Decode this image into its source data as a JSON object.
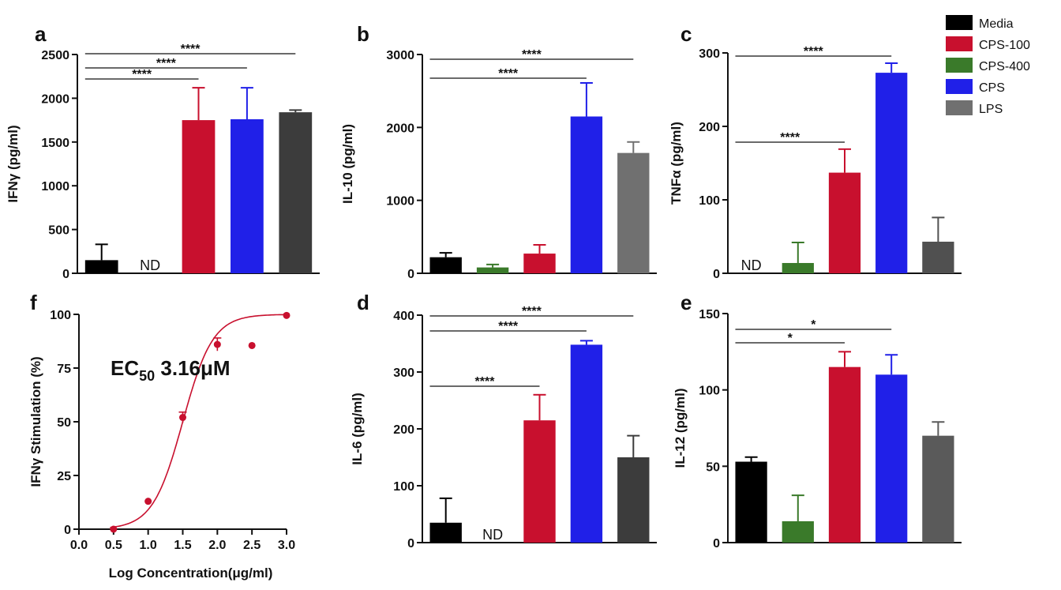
{
  "legend": [
    {
      "name": "Media",
      "color": "#000000"
    },
    {
      "name": "CPS-100",
      "color": "#c8102e"
    },
    {
      "name": "CPS-400",
      "color": "#3a7a2a"
    },
    {
      "name": "CPS",
      "color": "#2020e8"
    },
    {
      "name": "LPS",
      "color": "#707070"
    }
  ],
  "chart_data": [
    {
      "panel": "a",
      "type": "bar",
      "ylabel": "IFNγ (pg/ml)",
      "ylim": [
        0,
        2500
      ],
      "yticks": [
        0,
        500,
        1000,
        1500,
        2000,
        2500
      ],
      "categories": [
        "Media",
        "CPS-400",
        "CPS-100",
        "CPS",
        "LPS"
      ],
      "values": [
        150,
        null,
        1750,
        1760,
        1840
      ],
      "errors": [
        180,
        null,
        370,
        360,
        25
      ],
      "colors": [
        "#000000",
        "#3a7a2a",
        "#c8102e",
        "#2020e8",
        "#3c3c3c"
      ],
      "nd": [
        "",
        "ND",
        "",
        "",
        ""
      ],
      "sig": [
        {
          "from": 0,
          "to": 2,
          "label": "****"
        },
        {
          "from": 0,
          "to": 3,
          "label": "****"
        },
        {
          "from": 0,
          "to": 4,
          "label": "****"
        }
      ]
    },
    {
      "panel": "b",
      "type": "bar",
      "ylabel": "IL-10 (pg/ml)",
      "ylim": [
        0,
        3000
      ],
      "yticks": [
        0,
        1000,
        2000,
        3000
      ],
      "categories": [
        "Media",
        "CPS-400",
        "CPS-100",
        "CPS",
        "LPS"
      ],
      "values": [
        220,
        80,
        270,
        2150,
        1650
      ],
      "errors": [
        60,
        40,
        120,
        460,
        150
      ],
      "colors": [
        "#000000",
        "#3a7a2a",
        "#c8102e",
        "#2020e8",
        "#707070"
      ],
      "nd": [
        "",
        "",
        "",
        "",
        ""
      ],
      "sig": [
        {
          "from": 0,
          "to": 3,
          "label": "****"
        },
        {
          "from": 0,
          "to": 4,
          "label": "****"
        }
      ]
    },
    {
      "panel": "c",
      "type": "bar",
      "ylabel": "TNFα (pg/ml)",
      "ylim": [
        0,
        300
      ],
      "yticks": [
        0,
        100,
        200,
        300
      ],
      "categories": [
        "Media",
        "CPS-400",
        "CPS-100",
        "CPS",
        "LPS"
      ],
      "values": [
        null,
        14,
        137,
        273,
        43
      ],
      "errors": [
        null,
        28,
        32,
        13,
        33
      ],
      "colors": [
        "#000000",
        "#3a7a2a",
        "#c8102e",
        "#2020e8",
        "#505050"
      ],
      "nd": [
        "ND",
        "",
        "",
        "",
        ""
      ],
      "sig": [
        {
          "from": 0,
          "to": 2,
          "label": "****"
        },
        {
          "from": 0,
          "to": 3,
          "label": "****"
        }
      ]
    },
    {
      "panel": "f",
      "type": "scatter",
      "ylabel": "IFNγ Stimulation (%)",
      "xlabel": "Log Concentration(μg/ml)",
      "xlim": [
        0,
        3.0
      ],
      "ylim": [
        0,
        100
      ],
      "xticks": [
        "0.0",
        "0.5",
        "1.0",
        "1.5",
        "2.0",
        "2.5",
        "3.0"
      ],
      "yticks": [
        0,
        25,
        50,
        75,
        100
      ],
      "x": [
        0.5,
        1.0,
        1.5,
        2.0,
        2.5,
        3.0
      ],
      "y": [
        0,
        13,
        52,
        86,
        85.5,
        99.5
      ],
      "errors": [
        0,
        0,
        2.5,
        3,
        0,
        0
      ],
      "fit": {
        "bottom": 0,
        "top": 100,
        "logEC50": 1.5,
        "hill": 2.0
      },
      "annotation": {
        "main": "EC",
        "sub": "50",
        "value": " 3.16μM"
      },
      "color": "#c8102e"
    },
    {
      "panel": "d",
      "type": "bar",
      "ylabel": "IL-6 (pg/ml)",
      "ylim": [
        0,
        400
      ],
      "yticks": [
        0,
        100,
        200,
        300,
        400
      ],
      "categories": [
        "Media",
        "CPS-400",
        "CPS-100",
        "CPS",
        "LPS"
      ],
      "values": [
        35,
        null,
        215,
        348,
        150
      ],
      "errors": [
        43,
        null,
        45,
        7,
        38
      ],
      "colors": [
        "#000000",
        "#3a7a2a",
        "#c8102e",
        "#2020e8",
        "#3c3c3c"
      ],
      "nd": [
        "",
        "ND",
        "",
        "",
        ""
      ],
      "sig": [
        {
          "from": 0,
          "to": 2,
          "label": "****"
        },
        {
          "from": 0,
          "to": 3,
          "label": "****"
        },
        {
          "from": 0,
          "to": 4,
          "label": "****"
        }
      ]
    },
    {
      "panel": "e",
      "type": "bar",
      "ylabel": "IL-12 (pg/ml)",
      "ylim": [
        0,
        150
      ],
      "yticks": [
        0,
        50,
        100,
        150
      ],
      "categories": [
        "Media",
        "CPS-400",
        "CPS-100",
        "CPS",
        "LPS"
      ],
      "values": [
        53,
        14,
        115,
        110,
        70
      ],
      "errors": [
        3,
        17,
        10,
        13,
        9
      ],
      "colors": [
        "#000000",
        "#3a7a2a",
        "#c8102e",
        "#2020e8",
        "#5a5a5a"
      ],
      "nd": [
        "",
        "",
        "",
        "",
        ""
      ],
      "sig": [
        {
          "from": 0,
          "to": 2,
          "label": "*"
        },
        {
          "from": 0,
          "to": 3,
          "label": "*"
        }
      ]
    }
  ]
}
